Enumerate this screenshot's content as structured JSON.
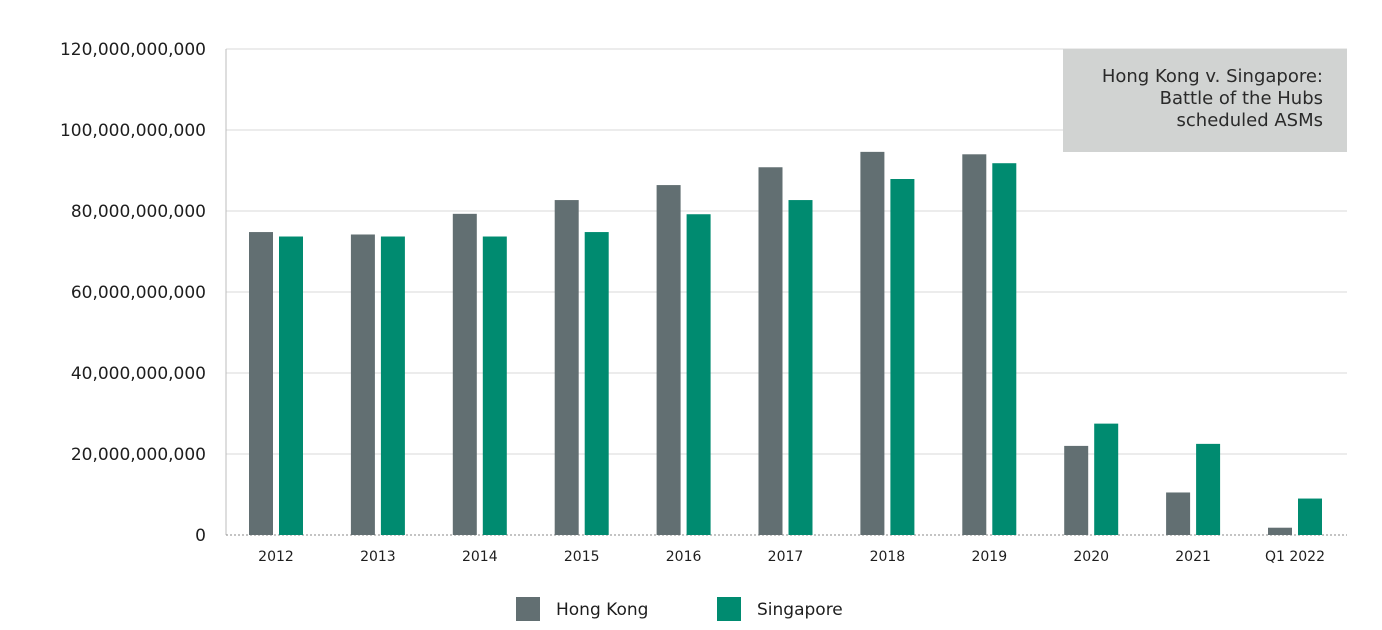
{
  "chart_data": {
    "type": "bar",
    "title_lines": [
      "Hong Kong v. Singapore:",
      "Battle of the Hubs",
      "scheduled ASMs"
    ],
    "categories": [
      "2012",
      "2013",
      "2014",
      "2015",
      "2016",
      "2017",
      "2018",
      "2019",
      "2020",
      "2021",
      "Q1 2022"
    ],
    "series": [
      {
        "name": "Hong Kong",
        "color": "#626f72",
        "values": [
          74800000000,
          74200000000,
          79300000000,
          82700000000,
          86400000000,
          90800000000,
          94600000000,
          94000000000,
          22000000000,
          10500000000,
          1800000000
        ]
      },
      {
        "name": "Singapore",
        "color": "#008b70",
        "values": [
          73700000000,
          73700000000,
          73700000000,
          74800000000,
          79200000000,
          82700000000,
          87900000000,
          91800000000,
          27500000000,
          22500000000,
          9000000000
        ]
      }
    ],
    "ylim": [
      0,
      120000000000
    ],
    "yticks": [
      0,
      20000000000,
      40000000000,
      60000000000,
      80000000000,
      100000000000,
      120000000000
    ],
    "ytick_labels": [
      "0",
      "20,000,000,000",
      "40,000,000,000",
      "60,000,000,000",
      "80,000,000,000",
      "100,000,000,000",
      "120,000,000,000"
    ],
    "grid": true,
    "legend_position": "bottom-center",
    "title_position": "top-right"
  }
}
